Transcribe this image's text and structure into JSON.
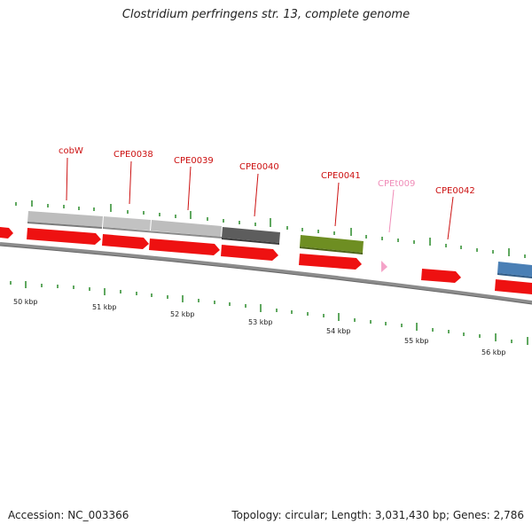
{
  "title": "Clostridium perfringens str. 13, complete genome",
  "footer": {
    "accession": "Accession: NC_003366",
    "summary": "Topology: circular; Length: 3,031,430 bp; Genes: 2,786"
  },
  "colors": {
    "cds": "#ee1111",
    "trna": "#f4a3c8",
    "label_red": "#cc1111",
    "label_pink": "#f08cb8",
    "backbone": "#8c8c8c",
    "tick": "#2a8a2a",
    "grey_light": "#bdbdbd",
    "grey_dark": "#5d5d5d",
    "olive": "#6e8e22",
    "blue": "#4a7fb5"
  },
  "gene_labels": [
    {
      "id": "cobW",
      "text": "cobW",
      "kind": "cds"
    },
    {
      "id": "CPE0038",
      "text": "CPE0038",
      "kind": "cds"
    },
    {
      "id": "CPE0039",
      "text": "CPE0039",
      "kind": "cds"
    },
    {
      "id": "CPE0040",
      "text": "CPE0040",
      "kind": "cds"
    },
    {
      "id": "CPE0041",
      "text": "CPE0041",
      "kind": "cds"
    },
    {
      "id": "CPEt009",
      "text": "CPEt009",
      "kind": "trna"
    },
    {
      "id": "CPE0042",
      "text": "CPE0042",
      "kind": "cds"
    }
  ],
  "kbp_labels": [
    "50 kbp",
    "51 kbp",
    "52 kbp",
    "53 kbp",
    "54 kbp",
    "55 kbp",
    "56 kbp"
  ]
}
